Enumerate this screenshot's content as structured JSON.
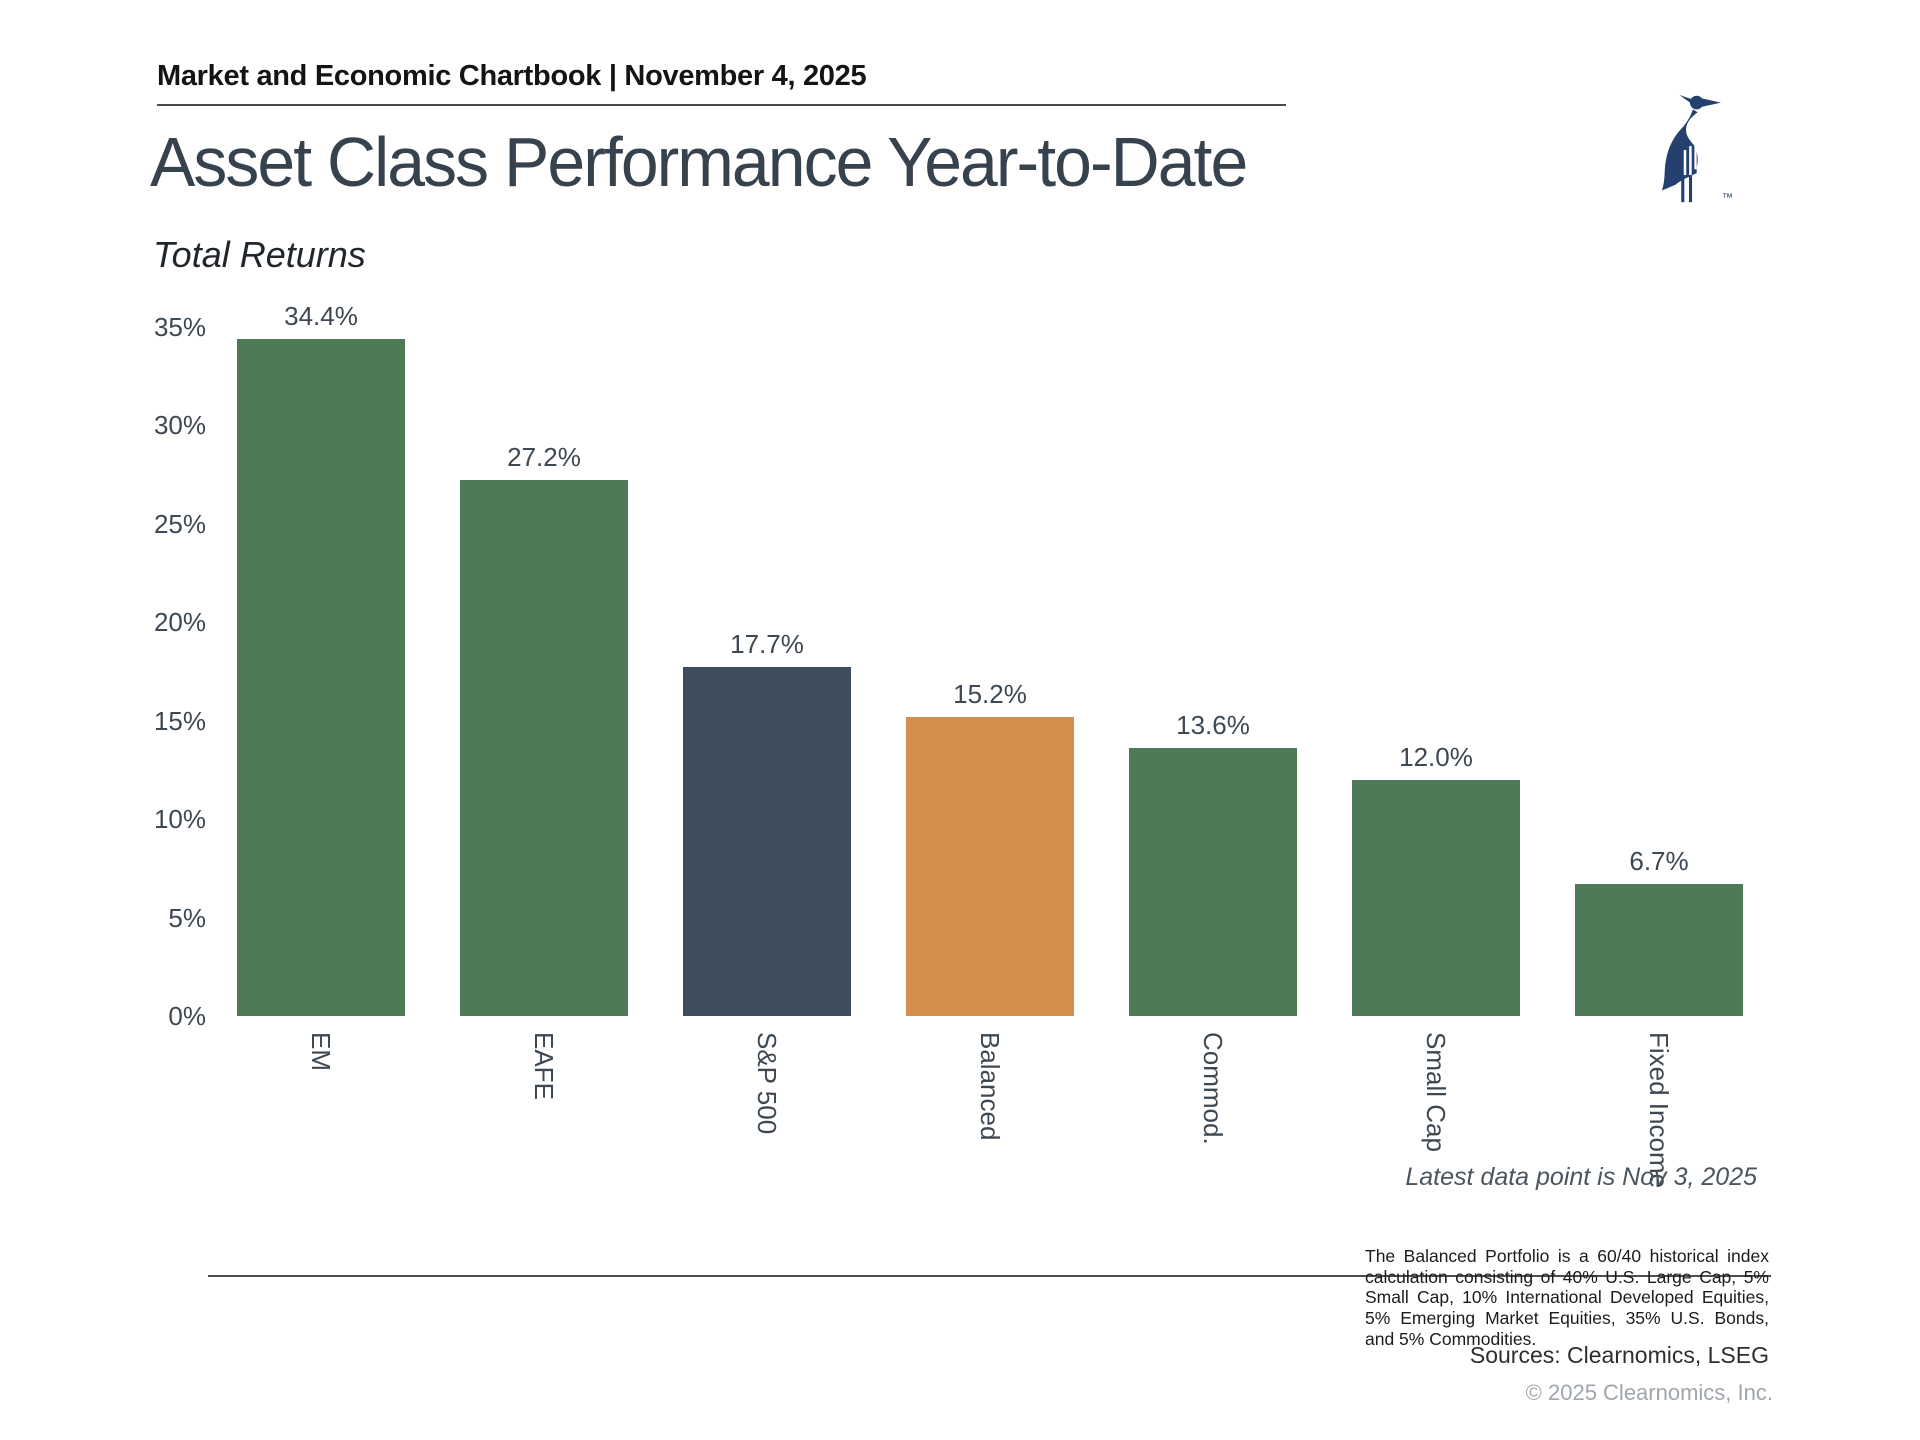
{
  "header": {
    "text": "Market and Economic Chartbook | November 4, 2025"
  },
  "title": "Asset Class Performance Year-to-Date",
  "subtitle": "Total Returns",
  "logo": {
    "trademark": "™",
    "color": "#24406e"
  },
  "chart_data": {
    "type": "bar",
    "title": "Asset Class Performance Year-to-Date",
    "subtitle": "Total Returns",
    "categories": [
      "EM",
      "EAFE",
      "S&P 500",
      "Balanced",
      "Commod.",
      "Small Cap",
      "Fixed Income"
    ],
    "values": [
      34.4,
      27.2,
      17.7,
      15.2,
      13.6,
      12.0,
      6.7
    ],
    "value_labels": [
      "34.4%",
      "27.2%",
      "17.7%",
      "15.2%",
      "13.6%",
      "12.0%",
      "6.7%"
    ],
    "bar_colors": [
      "#4e7a57",
      "#4e7a57",
      "#3d4d5e",
      "#d68e4d",
      "#4e7a57",
      "#4e7a57",
      "#4e7a57"
    ],
    "xlabel": "",
    "ylabel": "",
    "ylim": [
      0,
      35
    ],
    "ytick_values": [
      0,
      5,
      10,
      15,
      20,
      25,
      30,
      35
    ],
    "ytick_labels": [
      "0%",
      "5%",
      "10%",
      "15%",
      "20%",
      "25%",
      "30%",
      "35%"
    ],
    "grid": false,
    "legend": "none"
  },
  "annotations": {
    "latest_data": "Latest data point is Nov 3, 2025"
  },
  "footnote": "The Balanced Portfolio is a 60/40 historical index calculation consisting of 40% U.S. Large Cap, 5% Small Cap, 10% International Developed Equities, 5% Emerging Market Equities, 35% U.S. Bonds, and 5% Commodities.",
  "sources": "Sources: Clearnomics, LSEG",
  "copyright": "© 2025 Clearnomics, Inc.",
  "colors": {
    "green": "#4e7a57",
    "navy": "#3d4d5e",
    "orange": "#d68e4d",
    "title_text": "#36424e",
    "axis_text": "#3e4852",
    "logo_navy": "#24406e"
  }
}
